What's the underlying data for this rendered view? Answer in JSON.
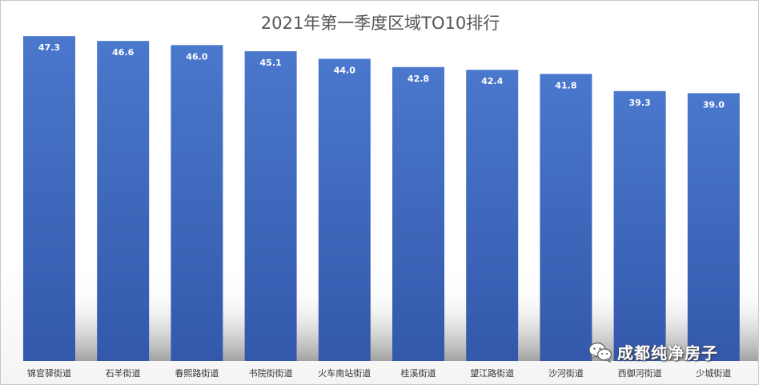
{
  "chart_data": {
    "type": "bar",
    "title": "2021年第一季度区域TO10排行",
    "categories": [
      "锦官驿街道",
      "石羊街道",
      "春熙路街道",
      "书院街街道",
      "火车南站街道",
      "桂溪街道",
      "望江路街道",
      "沙河街道",
      "西御河街道",
      "少城街道"
    ],
    "values": [
      47.3,
      46.6,
      46.0,
      45.1,
      44.0,
      42.8,
      42.4,
      41.8,
      39.3,
      39.0
    ],
    "data_labels": [
      "47.3",
      "46.6",
      "46.0",
      "45.1",
      "44.0",
      "42.8",
      "42.4",
      "41.8",
      "39.3",
      "39.0"
    ],
    "ylim": [
      0,
      50
    ],
    "grid": false,
    "legend": "none",
    "bar_color": "#4472c4",
    "bar_color_dark": "#2f54a8"
  },
  "watermark": {
    "text": "成都纯净房子",
    "icon": "wechat-icon"
  }
}
